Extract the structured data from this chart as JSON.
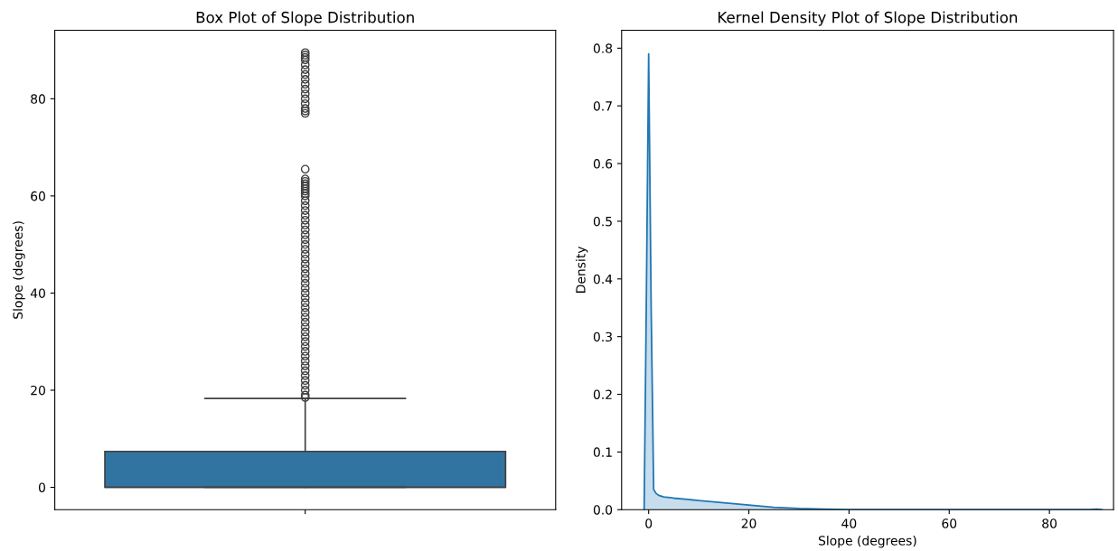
{
  "chart_data": [
    {
      "type": "box",
      "title": "Box Plot of Slope Distribution",
      "ylabel": "Slope (degrees)",
      "categories": [
        null
      ],
      "color": "#3274a1",
      "boxes": [
        {
          "low": 0,
          "q1": 0,
          "median": 0,
          "q3": 7.4,
          "high": 18.3,
          "outliers": [
            18.5,
            19,
            20,
            21,
            22,
            23,
            24,
            25,
            26,
            27,
            28,
            29,
            30,
            31,
            32,
            33,
            34,
            35,
            36,
            37,
            38,
            39,
            40,
            41,
            42,
            43,
            44,
            45,
            46,
            47,
            48,
            49,
            50,
            51,
            52,
            53,
            54,
            55,
            56,
            57,
            58,
            59,
            60,
            60.5,
            61,
            61.5,
            62,
            62.5,
            63,
            63.5,
            65.5,
            77,
            77.5,
            78,
            79,
            80,
            81,
            82,
            83,
            84,
            85,
            86,
            87,
            88,
            88.5,
            89,
            89.5
          ]
        }
      ],
      "ylim": [
        -4.6,
        94.1
      ],
      "yticks": [
        0,
        20,
        40,
        60,
        80
      ]
    },
    {
      "type": "area",
      "title": "Kernel Density Plot of Slope Distribution",
      "xlabel": "Slope (degrees)",
      "ylabel": "Density",
      "series": [
        {
          "color": "#1f77b4",
          "x": [
            -0.9,
            -0.5,
            0,
            0.5,
            1.0,
            1.5,
            2,
            3,
            5,
            10,
            15,
            20,
            25,
            30,
            35,
            40,
            50,
            60,
            70,
            80,
            88,
            89.5,
            90.5
          ],
          "values": [
            0,
            0.33,
            0.79,
            0.35,
            0.035,
            0.028,
            0.025,
            0.022,
            0.02,
            0.016,
            0.012,
            0.008,
            0.004,
            0.002,
            0.001,
            0,
            0,
            0,
            0,
            0,
            0,
            0.001,
            0
          ]
        }
      ],
      "xlim": [
        -5.4,
        92.8
      ],
      "ylim": [
        0,
        0.831
      ],
      "xticks": [
        0,
        20,
        40,
        60,
        80
      ],
      "yticks": [
        {
          "value": 0,
          "label": "0.0"
        },
        0.1,
        0.2,
        0.3,
        0.4,
        0.5,
        0.6,
        0.7,
        0.8
      ],
      "grid": false
    }
  ]
}
